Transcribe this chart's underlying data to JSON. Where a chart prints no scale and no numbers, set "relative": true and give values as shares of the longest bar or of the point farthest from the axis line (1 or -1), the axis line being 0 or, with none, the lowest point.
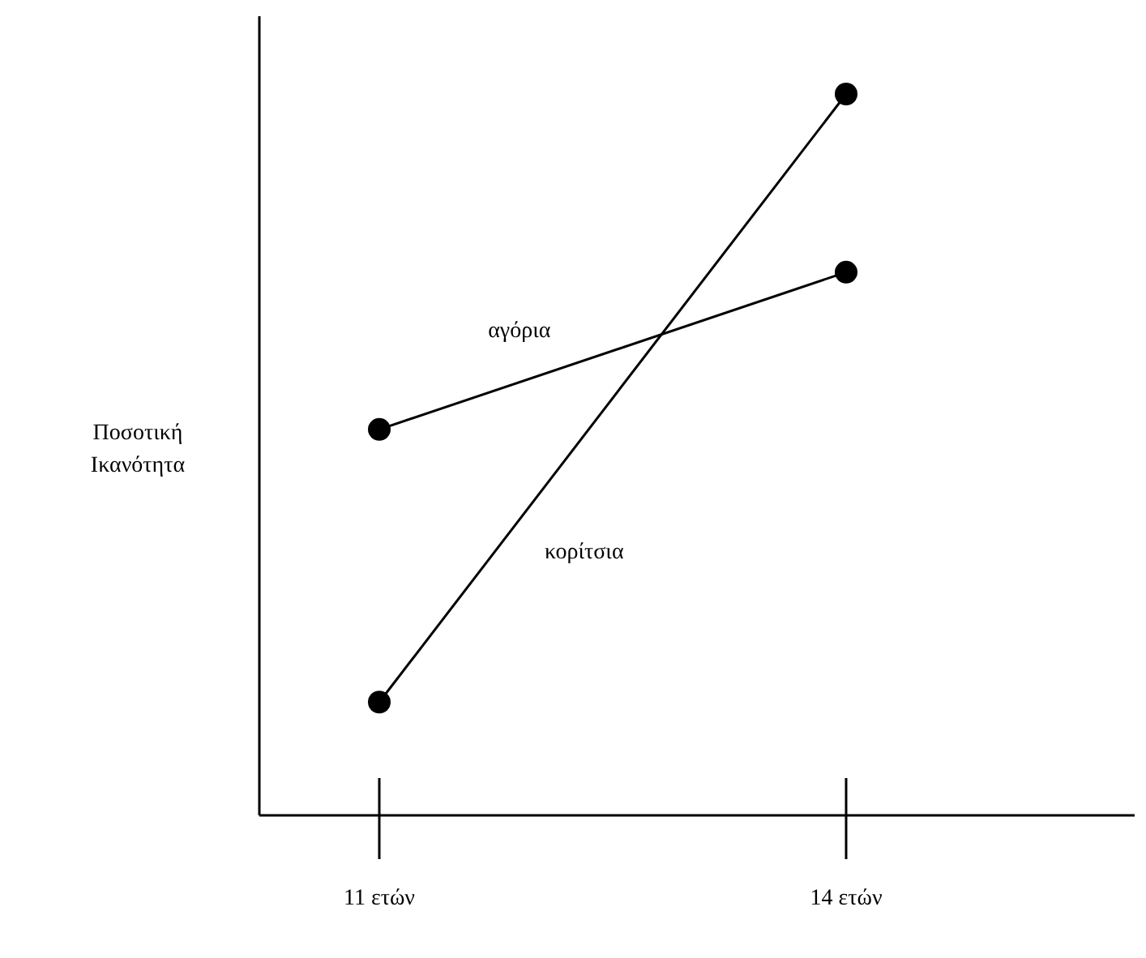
{
  "chart_data": {
    "type": "line",
    "ylabel": "Ποσοτική Ικανότητα",
    "categories": [
      "11 ετών",
      "14 ετών"
    ],
    "relative": true,
    "marker": "circle",
    "legend": false,
    "grid": false,
    "series": [
      {
        "name": "αγόρια",
        "color": "#000000",
        "values": [
          0.535,
          0.753
        ]
      },
      {
        "name": "κορίτσια",
        "color": "#000000",
        "values": [
          0.157,
          1
        ]
      }
    ]
  }
}
